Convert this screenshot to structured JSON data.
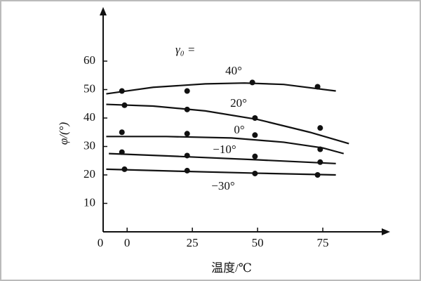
{
  "chart_data": {
    "type": "scatter",
    "xlabel": "温度/℃",
    "ylabel": "φ/(°)",
    "legend_title": "γ₀ =",
    "xlim": [
      -10,
      100
    ],
    "ylim": [
      0,
      80
    ],
    "xticks": [
      0,
      25,
      50,
      75
    ],
    "yticks": [
      0,
      10,
      20,
      30,
      40,
      50,
      60
    ],
    "color": "#111111",
    "series": [
      {
        "name": "40°",
        "x": [
          -2,
          23,
          48,
          73
        ],
        "values": [
          49.5,
          49.5,
          52.5,
          51
        ],
        "fit_x": [
          -8,
          10,
          30,
          45,
          60,
          80
        ],
        "fit": [
          48.5,
          50.8,
          52,
          52.3,
          51.8,
          49.5
        ]
      },
      {
        "name": "20°",
        "x": [
          -1,
          23,
          49,
          74
        ],
        "values": [
          44.5,
          43,
          40,
          36.5
        ],
        "fit_x": [
          -8,
          10,
          30,
          50,
          70,
          85
        ],
        "fit": [
          44.8,
          44.2,
          42.5,
          39.5,
          35,
          31
        ]
      },
      {
        "name": "0°",
        "x": [
          -2,
          23,
          49,
          74
        ],
        "values": [
          35,
          34.5,
          34,
          29
        ],
        "fit_x": [
          -8,
          15,
          40,
          60,
          75,
          83
        ],
        "fit": [
          33.5,
          33.5,
          33,
          31.5,
          29.5,
          27.5
        ]
      },
      {
        "name": "−10°",
        "x": [
          -2,
          23,
          49,
          74
        ],
        "values": [
          28,
          26.8,
          26.5,
          24.5
        ],
        "fit_x": [
          -7,
          20,
          50,
          80
        ],
        "fit": [
          27.5,
          26.5,
          25.3,
          24
        ]
      },
      {
        "name": "−30°",
        "x": [
          -1,
          23,
          49,
          73
        ],
        "values": [
          22,
          21.5,
          20.5,
          20
        ],
        "fit_x": [
          -8,
          20,
          50,
          80
        ],
        "fit": [
          22,
          21.3,
          20.6,
          20
        ]
      }
    ]
  }
}
